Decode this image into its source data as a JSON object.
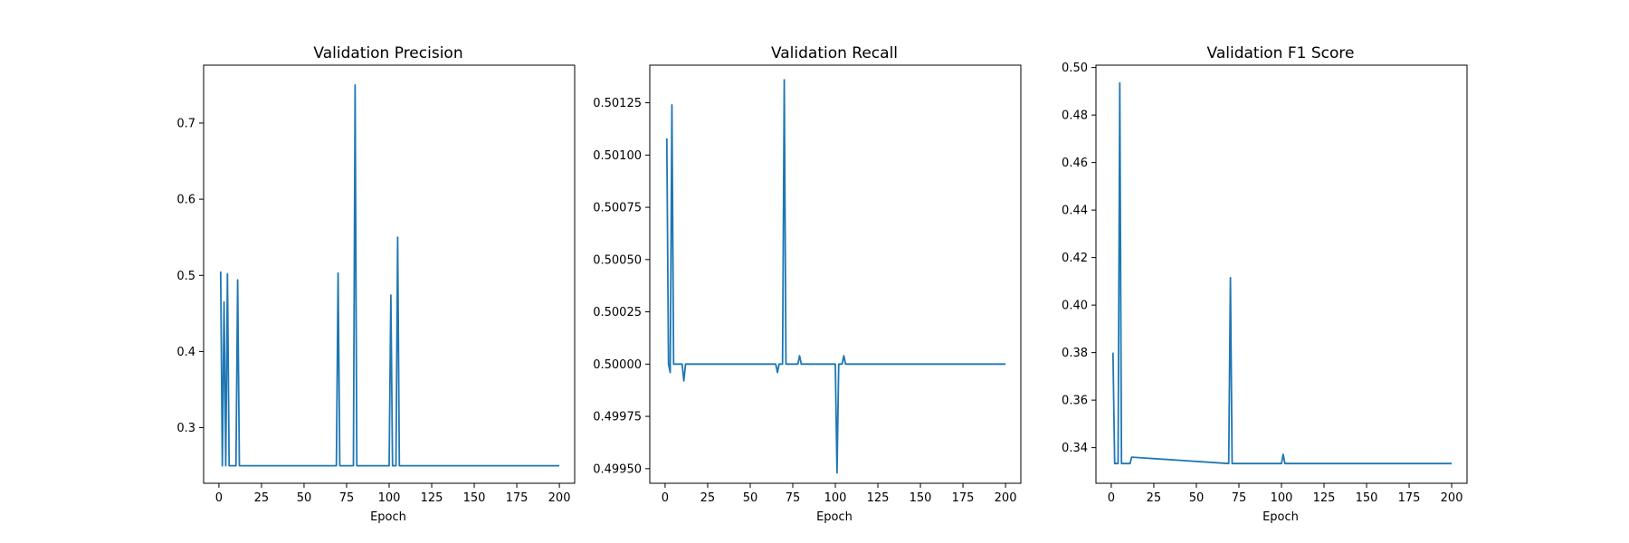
{
  "chart_data": [
    {
      "type": "line",
      "title": "Validation Precision",
      "xlabel": "Epoch",
      "ylabel": "",
      "xlim": [
        -9,
        209
      ],
      "ylim": [
        0.227,
        0.776
      ],
      "xticks": [
        0,
        25,
        50,
        75,
        100,
        125,
        150,
        175,
        200
      ],
      "yticks": [
        0.3,
        0.4,
        0.5,
        0.6,
        0.7
      ],
      "xtick_labels": [
        "0",
        "25",
        "50",
        "75",
        "100",
        "125",
        "150",
        "175",
        "200"
      ],
      "ytick_labels": [
        "0.3",
        "0.4",
        "0.5",
        "0.6",
        "0.7"
      ],
      "grid": false,
      "color": "#1f77b4",
      "x": [
        1,
        2,
        3,
        4,
        5,
        6,
        7,
        8,
        9,
        10,
        11,
        12,
        69,
        70,
        71,
        79,
        80,
        81,
        100,
        101,
        102,
        103,
        104,
        105,
        106,
        200
      ],
      "y": [
        0.505,
        0.25,
        0.465,
        0.25,
        0.502,
        0.25,
        0.25,
        0.25,
        0.25,
        0.25,
        0.494,
        0.25,
        0.25,
        0.503,
        0.25,
        0.25,
        0.75,
        0.25,
        0.25,
        0.474,
        0.25,
        0.25,
        0.25,
        0.55,
        0.25,
        0.25
      ]
    },
    {
      "type": "line",
      "title": "Validation Recall",
      "xlabel": "Epoch",
      "ylabel": "",
      "xlim": [
        -9,
        209
      ],
      "ylim": [
        0.49943,
        0.50143
      ],
      "xticks": [
        0,
        25,
        50,
        75,
        100,
        125,
        150,
        175,
        200
      ],
      "yticks": [
        0.4995,
        0.49975,
        0.5,
        0.50025,
        0.5005,
        0.50075,
        0.501,
        0.50125
      ],
      "xtick_labels": [
        "0",
        "25",
        "50",
        "75",
        "100",
        "125",
        "150",
        "175",
        "200"
      ],
      "ytick_labels": [
        "0.49950",
        "0.49975",
        "0.50000",
        "0.50025",
        "0.50050",
        "0.50075",
        "0.50100",
        "0.50125"
      ],
      "grid": false,
      "color": "#1f77b4",
      "x": [
        1,
        2,
        3,
        4,
        5,
        6,
        10,
        11,
        12,
        65,
        66,
        67,
        69,
        70,
        71,
        78,
        79,
        80,
        100,
        101,
        102,
        103,
        104,
        105,
        106,
        200
      ],
      "y": [
        0.50108,
        0.5,
        0.49996,
        0.50124,
        0.5,
        0.5,
        0.5,
        0.49992,
        0.5,
        0.5,
        0.49996,
        0.5,
        0.5,
        0.50136,
        0.5,
        0.5,
        0.50004,
        0.5,
        0.5,
        0.49948,
        0.5,
        0.5,
        0.5,
        0.50004,
        0.5,
        0.5
      ]
    },
    {
      "type": "line",
      "title": "Validation F1 Score",
      "xlabel": "Epoch",
      "ylabel": "",
      "xlim": [
        -9,
        209
      ],
      "ylim": [
        0.325,
        0.501
      ],
      "xticks": [
        0,
        25,
        50,
        75,
        100,
        125,
        150,
        175,
        200
      ],
      "yticks": [
        0.34,
        0.36,
        0.38,
        0.4,
        0.42,
        0.44,
        0.46,
        0.48,
        0.5
      ],
      "xtick_labels": [
        "0",
        "25",
        "50",
        "75",
        "100",
        "125",
        "150",
        "175",
        "200"
      ],
      "ytick_labels": [
        "0.34",
        "0.36",
        "0.38",
        "0.40",
        "0.42",
        "0.44",
        "0.46",
        "0.48",
        "0.50"
      ],
      "grid": false,
      "color": "#1f77b4",
      "x": [
        1,
        2,
        3,
        4,
        5,
        6,
        10,
        11,
        12,
        69,
        70,
        71,
        100,
        101,
        102,
        200
      ],
      "y": [
        0.38,
        0.3333,
        0.3333,
        0.3333,
        0.4935,
        0.3333,
        0.3333,
        0.3333,
        0.336,
        0.3333,
        0.4115,
        0.3333,
        0.3333,
        0.3372,
        0.3333,
        0.3333
      ]
    }
  ]
}
